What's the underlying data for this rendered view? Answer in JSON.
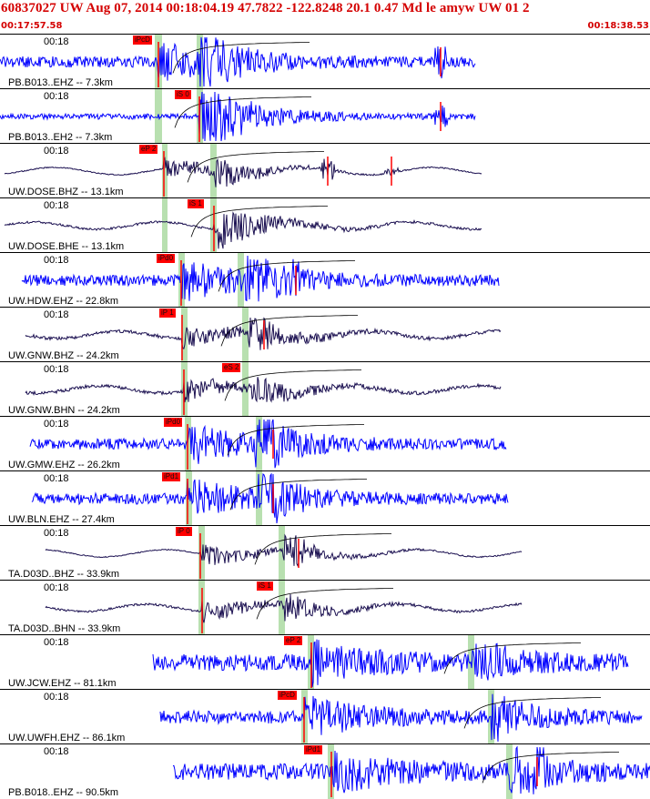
{
  "header": {
    "title": "60837027 UW Aug 07, 2014 00:18:04.19    47.7822 -122.8248 20.1 0.47 Md le amyw UW 01   2",
    "start_time": "00:17:57.58",
    "end_time": "00:18:38.53"
  },
  "colors": {
    "title": "#d40000",
    "pick": "#ff0000",
    "window": "#b8e0b0",
    "wave_blue": "#0000ff",
    "wave_dark": "#1a0f50"
  },
  "panels": [
    {
      "id": "pb-b013-ehz",
      "time": "00:18",
      "label": "PB.B013..EHZ -- 7.3km",
      "pick": "iPcD",
      "color": "#0000ff"
    },
    {
      "id": "pb-b013-eh2",
      "time": "00:18",
      "label": "PB.B013..EH2 -- 7.3km",
      "pick": "iS 0",
      "color": "#0000ff"
    },
    {
      "id": "uw-dose-bhz",
      "time": "00:18",
      "label": "UW.DOSE.BHZ -- 13.1km",
      "pick": "eP 2",
      "color": "#1a0f50"
    },
    {
      "id": "uw-dose-bhe",
      "time": "00:18",
      "label": "UW.DOSE.BHE -- 13.1km",
      "pick": "iS 1",
      "color": "#1a0f50"
    },
    {
      "id": "uw-hdw-ehz",
      "time": "00:18",
      "label": "UW.HDW.EHZ -- 22.8km",
      "pick": "iPd0",
      "color": "#0000ff"
    },
    {
      "id": "uw-gnw-bhz",
      "time": "00:18",
      "label": "UW.GNW.BHZ -- 24.2km",
      "pick": "iP 1",
      "color": "#1a0f50"
    },
    {
      "id": "uw-gnw-bhn",
      "time": "00:18",
      "label": "UW.GNW.BHN -- 24.2km",
      "pick": "eS 2",
      "color": "#1a0f50"
    },
    {
      "id": "uw-gmw-ehz",
      "time": "00:18",
      "label": "UW.GMW.EHZ -- 26.2km",
      "pick": "iPd0",
      "color": "#0000ff"
    },
    {
      "id": "uw-bln-ehz",
      "time": "00:18",
      "label": "UW.BLN.EHZ -- 27.4km",
      "pick": "iPd1",
      "color": "#0000ff"
    },
    {
      "id": "ta-d03d-bhz",
      "time": "00:18",
      "label": "TA.D03D..BHZ -- 33.9km",
      "pick": "iP 0",
      "color": "#1a0f50"
    },
    {
      "id": "ta-d03d-bhn",
      "time": "00:18",
      "label": "TA.D03D..BHN -- 33.9km",
      "pick": "iS 1",
      "color": "#1a0f50"
    },
    {
      "id": "uw-jcw-ehz",
      "time": "00:18",
      "label": "UW.JCW.EHZ -- 81.1km",
      "pick": "eP 2",
      "color": "#0000ff"
    },
    {
      "id": "uw-uwfh-ehz",
      "time": "00:18",
      "label": "UW.UWFH.EHZ -- 86.1km",
      "pick": "iPcD",
      "color": "#0000ff"
    },
    {
      "id": "pb-b018-ehz",
      "time": "00:18",
      "label": "PB.B018..EHZ -- 90.5km",
      "pick": "iPd1",
      "color": "#0000ff"
    }
  ]
}
